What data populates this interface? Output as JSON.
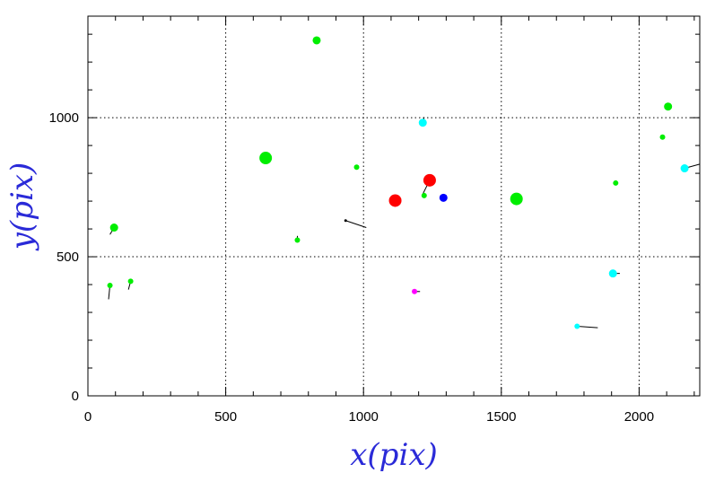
{
  "chart_data": {
    "type": "scatter",
    "xlabel": "x(pix)",
    "ylabel": "y(pix)",
    "xlim": [
      0,
      2220
    ],
    "ylim": [
      0,
      1365
    ],
    "grid": true,
    "grid_style": "dotted",
    "x_ticks": [
      0,
      500,
      1000,
      1500,
      2000
    ],
    "y_ticks": [
      0,
      500,
      1000
    ],
    "colors": {
      "green": "#00ee00",
      "red": "#ff0000",
      "blue": "#0000ff",
      "cyan": "#00ffff",
      "magenta": "#ff00ff",
      "vector": "#000000",
      "axis_title": "#2a2ad8"
    },
    "points": [
      {
        "x": 830,
        "y": 1278,
        "size": "medium",
        "color": "green"
      },
      {
        "x": 645,
        "y": 855,
        "size": "large",
        "color": "green"
      },
      {
        "x": 975,
        "y": 822,
        "size": "small",
        "color": "green"
      },
      {
        "x": 1215,
        "y": 982,
        "size": "medium",
        "color": "cyan",
        "vx": 5,
        "vy": 20
      },
      {
        "x": 1240,
        "y": 775,
        "size": "large",
        "color": "red",
        "vx": -25,
        "vy": -50
      },
      {
        "x": 1220,
        "y": 720,
        "size": "small",
        "color": "green"
      },
      {
        "x": 1290,
        "y": 712,
        "size": "medium",
        "color": "blue"
      },
      {
        "x": 1115,
        "y": 702,
        "size": "large",
        "color": "red"
      },
      {
        "x": 1555,
        "y": 708,
        "size": "large",
        "color": "green"
      },
      {
        "x": 935,
        "y": 630,
        "size": "tiny",
        "color": "vector",
        "vx": 75,
        "vy": -25
      },
      {
        "x": 760,
        "y": 560,
        "size": "small",
        "color": "green",
        "vx": 0,
        "vy": 15
      },
      {
        "x": 95,
        "y": 605,
        "size": "medium",
        "color": "green",
        "vx": -15,
        "vy": -25
      },
      {
        "x": 80,
        "y": 397,
        "size": "small",
        "color": "green",
        "vx": -5,
        "vy": -50
      },
      {
        "x": 155,
        "y": 412,
        "size": "small",
        "color": "green",
        "vx": -8,
        "vy": -30
      },
      {
        "x": 1185,
        "y": 375,
        "size": "small",
        "color": "magenta",
        "vx": 20,
        "vy": 0
      },
      {
        "x": 1905,
        "y": 440,
        "size": "medium",
        "color": "cyan",
        "vx": 25,
        "vy": 0
      },
      {
        "x": 1775,
        "y": 250,
        "size": "small",
        "color": "cyan",
        "vx": 75,
        "vy": -5
      },
      {
        "x": 1915,
        "y": 765,
        "size": "small",
        "color": "green"
      },
      {
        "x": 2105,
        "y": 1040,
        "size": "medium",
        "color": "green"
      },
      {
        "x": 2085,
        "y": 930,
        "size": "small",
        "color": "green"
      },
      {
        "x": 2165,
        "y": 818,
        "size": "medium",
        "color": "cyan",
        "vx": 55,
        "vy": 15
      }
    ]
  }
}
